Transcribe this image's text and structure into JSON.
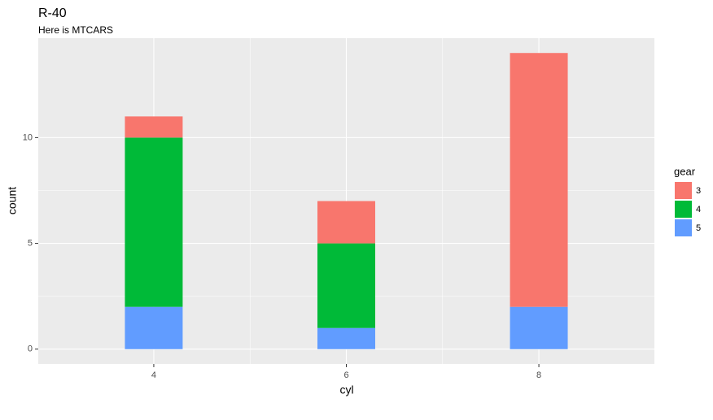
{
  "chart_data": {
    "type": "stacked_bar",
    "title": "R-40",
    "subtitle": "Here is MTCARS",
    "x_label": "cyl",
    "y_label": "count",
    "x": [
      4,
      6,
      8
    ],
    "bar_width": 0.6,
    "series": [
      {
        "name": "3",
        "color": "#F8766D",
        "values": [
          1,
          2,
          12
        ]
      },
      {
        "name": "4",
        "color": "#00BA38",
        "values": [
          8,
          4,
          0
        ]
      },
      {
        "name": "5",
        "color": "#619CFF",
        "values": [
          2,
          1,
          2
        ]
      }
    ],
    "legend_title": "gear",
    "legend_position": "right",
    "xlim": [
      2.8,
      9.2
    ],
    "xticks": [
      4,
      6,
      8
    ],
    "ylim": [
      -0.7,
      14.7
    ],
    "yticks": [
      0,
      5,
      10
    ],
    "grid": true
  }
}
